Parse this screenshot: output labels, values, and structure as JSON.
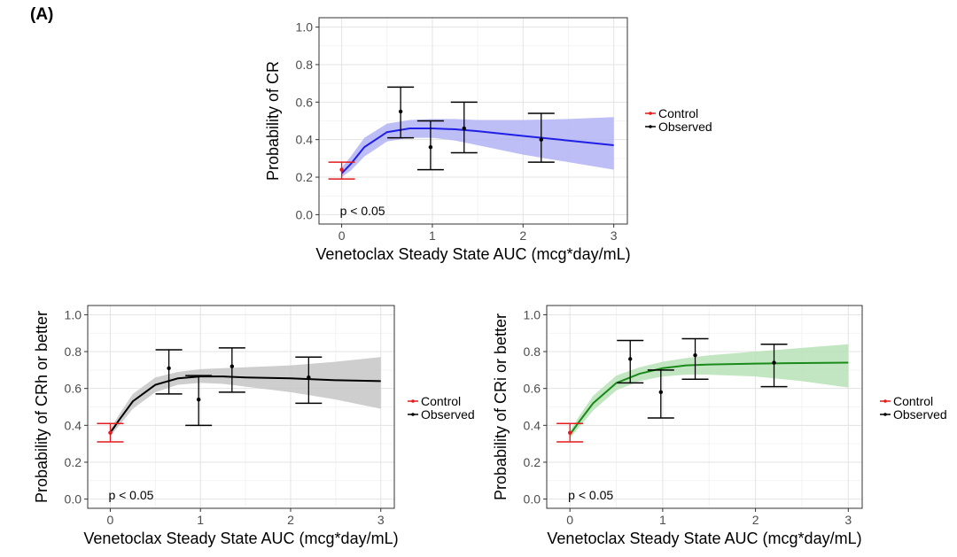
{
  "figure": {
    "panel_label": "(A)"
  },
  "chart_data": [
    {
      "type": "line",
      "title": "",
      "xlabel": "Venetoclax Steady State AUC (mcg*day/mL)",
      "ylabel": "Probability of CR",
      "xlim": [
        -0.25,
        3.15
      ],
      "ylim": [
        -0.05,
        1.05
      ],
      "x_ticks": [
        0,
        1,
        2,
        3
      ],
      "x_tick_labels": [
        "0",
        "1",
        "2",
        "3"
      ],
      "y_ticks": [
        0,
        0.2,
        0.4,
        0.6,
        0.8,
        1.0
      ],
      "y_tick_labels": [
        "0.0",
        "0.2",
        "0.4",
        "0.6",
        "0.8",
        "1.0"
      ],
      "grid": true,
      "annotation": "p < 0.05",
      "legend": {
        "placement": "right",
        "entries": [
          {
            "label": "Control",
            "color": "#e41a1c"
          },
          {
            "label": "Observed",
            "color": "#000000"
          }
        ]
      },
      "model_color": "#1f1fe6",
      "band_color": "#b3b3f5",
      "model": {
        "x": [
          0,
          0.1,
          0.25,
          0.5,
          0.75,
          1.0,
          1.25,
          1.5,
          2.0,
          2.5,
          3.0
        ],
        "y": [
          0.22,
          0.27,
          0.36,
          0.44,
          0.46,
          0.46,
          0.455,
          0.445,
          0.42,
          0.395,
          0.37
        ],
        "lower": [
          0.2,
          0.235,
          0.31,
          0.39,
          0.41,
          0.41,
          0.395,
          0.37,
          0.32,
          0.28,
          0.24
        ],
        "upper": [
          0.25,
          0.31,
          0.41,
          0.485,
          0.505,
          0.51,
          0.51,
          0.505,
          0.505,
          0.51,
          0.52
        ]
      },
      "observed": [
        {
          "x": 0.65,
          "y": 0.55,
          "lower": 0.41,
          "upper": 0.68
        },
        {
          "x": 0.98,
          "y": 0.36,
          "lower": 0.24,
          "upper": 0.5
        },
        {
          "x": 1.35,
          "y": 0.46,
          "lower": 0.33,
          "upper": 0.6
        },
        {
          "x": 2.2,
          "y": 0.4,
          "lower": 0.28,
          "upper": 0.54
        }
      ],
      "control": {
        "x": 0,
        "y": 0.24,
        "lower": 0.19,
        "upper": 0.28
      }
    },
    {
      "type": "line",
      "title": "",
      "xlabel": "Venetoclax Steady State AUC (mcg*day/mL)",
      "ylabel": "Probability of CRh or better",
      "xlim": [
        -0.25,
        3.15
      ],
      "ylim": [
        -0.05,
        1.05
      ],
      "x_ticks": [
        0,
        1,
        2,
        3
      ],
      "x_tick_labels": [
        "0",
        "1",
        "2",
        "3"
      ],
      "y_ticks": [
        0,
        0.2,
        0.4,
        0.6,
        0.8,
        1.0
      ],
      "y_tick_labels": [
        "0.0",
        "0.2",
        "0.4",
        "0.6",
        "0.8",
        "1.0"
      ],
      "grid": true,
      "annotation": "p < 0.05",
      "legend": {
        "placement": "right",
        "entries": [
          {
            "label": "Control",
            "color": "#e41a1c"
          },
          {
            "label": "Observed",
            "color": "#000000"
          }
        ]
      },
      "model_color": "#000000",
      "band_color": "#c6c6c6",
      "model": {
        "x": [
          0,
          0.1,
          0.25,
          0.5,
          0.75,
          1.0,
          1.25,
          1.5,
          2.0,
          2.5,
          3.0
        ],
        "y": [
          0.36,
          0.43,
          0.53,
          0.62,
          0.655,
          0.665,
          0.665,
          0.66,
          0.655,
          0.645,
          0.64
        ],
        "lower": [
          0.34,
          0.4,
          0.49,
          0.58,
          0.62,
          0.63,
          0.625,
          0.61,
          0.58,
          0.54,
          0.49
        ],
        "upper": [
          0.38,
          0.46,
          0.57,
          0.66,
          0.69,
          0.705,
          0.71,
          0.715,
          0.725,
          0.745,
          0.77
        ]
      },
      "observed": [
        {
          "x": 0.65,
          "y": 0.71,
          "lower": 0.57,
          "upper": 0.81
        },
        {
          "x": 0.98,
          "y": 0.54,
          "lower": 0.4,
          "upper": 0.67
        },
        {
          "x": 1.35,
          "y": 0.72,
          "lower": 0.58,
          "upper": 0.82
        },
        {
          "x": 2.2,
          "y": 0.66,
          "lower": 0.52,
          "upper": 0.77
        }
      ],
      "control": {
        "x": 0,
        "y": 0.36,
        "lower": 0.31,
        "upper": 0.41
      }
    },
    {
      "type": "line",
      "title": "",
      "xlabel": "Venetoclax Steady State AUC (mcg*day/mL)",
      "ylabel": "Probability of CRi or better",
      "xlim": [
        -0.25,
        3.15
      ],
      "ylim": [
        -0.05,
        1.05
      ],
      "x_ticks": [
        0,
        1,
        2,
        3
      ],
      "x_tick_labels": [
        "0",
        "1",
        "2",
        "3"
      ],
      "y_ticks": [
        0,
        0.2,
        0.4,
        0.6,
        0.8,
        1.0
      ],
      "y_tick_labels": [
        "0.0",
        "0.2",
        "0.4",
        "0.6",
        "0.8",
        "1.0"
      ],
      "grid": true,
      "annotation": "p < 0.05",
      "legend": {
        "placement": "right",
        "entries": [
          {
            "label": "Control",
            "color": "#e41a1c"
          },
          {
            "label": "Observed",
            "color": "#000000"
          }
        ]
      },
      "model_color": "#1a8a1a",
      "band_color": "#b6e2b6",
      "model": {
        "x": [
          0,
          0.1,
          0.25,
          0.5,
          0.75,
          1.0,
          1.25,
          1.5,
          2.0,
          2.5,
          3.0
        ],
        "y": [
          0.35,
          0.42,
          0.52,
          0.63,
          0.68,
          0.71,
          0.725,
          0.73,
          0.735,
          0.738,
          0.74
        ],
        "lower": [
          0.33,
          0.39,
          0.48,
          0.59,
          0.64,
          0.665,
          0.675,
          0.675,
          0.665,
          0.64,
          0.605
        ],
        "upper": [
          0.37,
          0.45,
          0.56,
          0.67,
          0.715,
          0.745,
          0.765,
          0.78,
          0.8,
          0.82,
          0.84
        ]
      },
      "observed": [
        {
          "x": 0.65,
          "y": 0.76,
          "lower": 0.63,
          "upper": 0.86
        },
        {
          "x": 0.98,
          "y": 0.58,
          "lower": 0.44,
          "upper": 0.7
        },
        {
          "x": 1.35,
          "y": 0.78,
          "lower": 0.65,
          "upper": 0.87
        },
        {
          "x": 2.2,
          "y": 0.74,
          "lower": 0.61,
          "upper": 0.84
        }
      ],
      "control": {
        "x": 0,
        "y": 0.36,
        "lower": 0.31,
        "upper": 0.41
      }
    }
  ]
}
